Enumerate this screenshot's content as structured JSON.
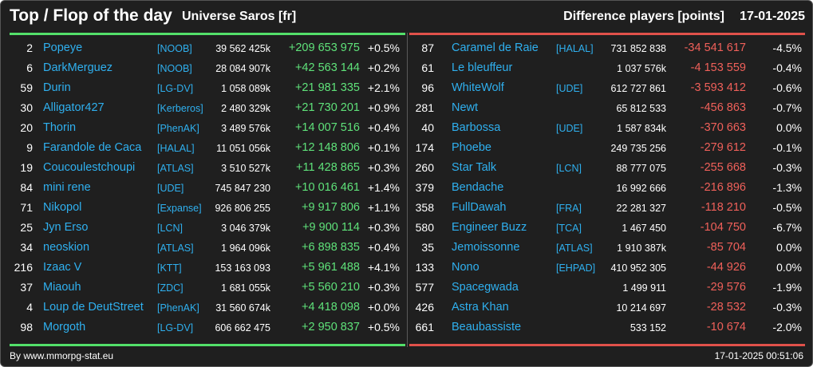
{
  "header": {
    "title": "Top / Flop of the day",
    "universe": "Universe Saros [fr]",
    "difference_label": "Difference players [points]",
    "date": "17-01-2025"
  },
  "colors": {
    "top_accent": "#53e06a",
    "flop_accent": "#e0514a",
    "name_link": "#2fb0ef",
    "background": "#1f1f1f"
  },
  "top": [
    {
      "rank": "2",
      "name": "Popeye",
      "alliance": "[NOOB]",
      "score": "39 562 425k",
      "diff": "+209 653 975",
      "pct": "+0.5%"
    },
    {
      "rank": "6",
      "name": "DarkMerguez",
      "alliance": "[NOOB]",
      "score": "28 084 907k",
      "diff": "+42 563 144",
      "pct": "+0.2%"
    },
    {
      "rank": "59",
      "name": "Durin",
      "alliance": "[LG-DV]",
      "score": "1 058 089k",
      "diff": "+21 981 335",
      "pct": "+2.1%"
    },
    {
      "rank": "30",
      "name": "Alligator427",
      "alliance": "[Kerberos]",
      "score": "2 480 329k",
      "diff": "+21 730 201",
      "pct": "+0.9%"
    },
    {
      "rank": "20",
      "name": "Thorin",
      "alliance": "[PhenAK]",
      "score": "3 489 576k",
      "diff": "+14 007 516",
      "pct": "+0.4%"
    },
    {
      "rank": "9",
      "name": "Farandole de Caca",
      "alliance": "[HALAL]",
      "score": "11 051 056k",
      "diff": "+12 148 806",
      "pct": "+0.1%"
    },
    {
      "rank": "19",
      "name": "Coucoulestchoupi",
      "alliance": "[ATLAS]",
      "score": "3 510 527k",
      "diff": "+11 428 865",
      "pct": "+0.3%"
    },
    {
      "rank": "84",
      "name": "mini rene",
      "alliance": "[UDE]",
      "score": "745 847 230",
      "diff": "+10 016 461",
      "pct": "+1.4%"
    },
    {
      "rank": "71",
      "name": "Nikopol",
      "alliance": "[Expanse]",
      "score": "926 806 255",
      "diff": "+9 917 806",
      "pct": "+1.1%"
    },
    {
      "rank": "25",
      "name": "Jyn Erso",
      "alliance": "[LCN]",
      "score": "3 046 379k",
      "diff": "+9 900 114",
      "pct": "+0.3%"
    },
    {
      "rank": "34",
      "name": "neoskion",
      "alliance": "[ATLAS]",
      "score": "1 964 096k",
      "diff": "+6 898 835",
      "pct": "+0.4%"
    },
    {
      "rank": "216",
      "name": "Izaac V",
      "alliance": "[KTT]",
      "score": "153 163 093",
      "diff": "+5 961 488",
      "pct": "+4.1%"
    },
    {
      "rank": "37",
      "name": "Miaouh",
      "alliance": "[ZDC]",
      "score": "1 681 055k",
      "diff": "+5 560 210",
      "pct": "+0.3%"
    },
    {
      "rank": "4",
      "name": "Loup de DeutStreet",
      "alliance": "[PhenAK]",
      "score": "31 560 674k",
      "diff": "+4 418 098",
      "pct": "+0.0%"
    },
    {
      "rank": "98",
      "name": "Morgoth",
      "alliance": "[LG-DV]",
      "score": "606 662 475",
      "diff": "+2 950 837",
      "pct": "+0.5%"
    }
  ],
  "flop": [
    {
      "rank": "87",
      "name": "Caramel de Raie",
      "alliance": "[HALAL]",
      "score": "731 852 838",
      "diff": "-34 541 617",
      "pct": "-4.5%"
    },
    {
      "rank": "61",
      "name": "Le bleuffeur",
      "alliance": "",
      "score": "1 037 576k",
      "diff": "-4 153 559",
      "pct": "-0.4%"
    },
    {
      "rank": "96",
      "name": "WhiteWolf",
      "alliance": "[UDE]",
      "score": "612 727 861",
      "diff": "-3 593 412",
      "pct": "-0.6%"
    },
    {
      "rank": "281",
      "name": "Newt",
      "alliance": "",
      "score": "65 812 533",
      "diff": "-456 863",
      "pct": "-0.7%"
    },
    {
      "rank": "40",
      "name": "Barbossa",
      "alliance": "[UDE]",
      "score": "1 587 834k",
      "diff": "-370 663",
      "pct": "0.0%"
    },
    {
      "rank": "174",
      "name": "Phoebe",
      "alliance": "",
      "score": "249 735 256",
      "diff": "-279 612",
      "pct": "-0.1%"
    },
    {
      "rank": "260",
      "name": "Star Talk",
      "alliance": "[LCN]",
      "score": "88 777 075",
      "diff": "-255 668",
      "pct": "-0.3%"
    },
    {
      "rank": "379",
      "name": "Bendache",
      "alliance": "",
      "score": "16 992 666",
      "diff": "-216 896",
      "pct": "-1.3%"
    },
    {
      "rank": "358",
      "name": "FullDawah",
      "alliance": "[FRA]",
      "score": "22 281 327",
      "diff": "-118 210",
      "pct": "-0.5%"
    },
    {
      "rank": "580",
      "name": "Engineer Buzz",
      "alliance": "[TCA]",
      "score": "1 467 450",
      "diff": "-104 750",
      "pct": "-6.7%"
    },
    {
      "rank": "35",
      "name": "Jemoissonne",
      "alliance": "[ATLAS]",
      "score": "1 910 387k",
      "diff": "-85 704",
      "pct": "0.0%"
    },
    {
      "rank": "133",
      "name": "Nono",
      "alliance": "[EHPAD]",
      "score": "410 952 305",
      "diff": "-44 926",
      "pct": "0.0%"
    },
    {
      "rank": "577",
      "name": "Spacegwada",
      "alliance": "",
      "score": "1 499 911",
      "diff": "-29 576",
      "pct": "-1.9%"
    },
    {
      "rank": "426",
      "name": "Astra Khan",
      "alliance": "",
      "score": "10 214 697",
      "diff": "-28 532",
      "pct": "-0.3%"
    },
    {
      "rank": "661",
      "name": "Beaubassiste",
      "alliance": "",
      "score": "533 152",
      "diff": "-10 674",
      "pct": "-2.0%"
    }
  ],
  "footer": {
    "source": "By www.mmorpg-stat.eu",
    "timestamp": "17-01-2025 00:51:06"
  }
}
